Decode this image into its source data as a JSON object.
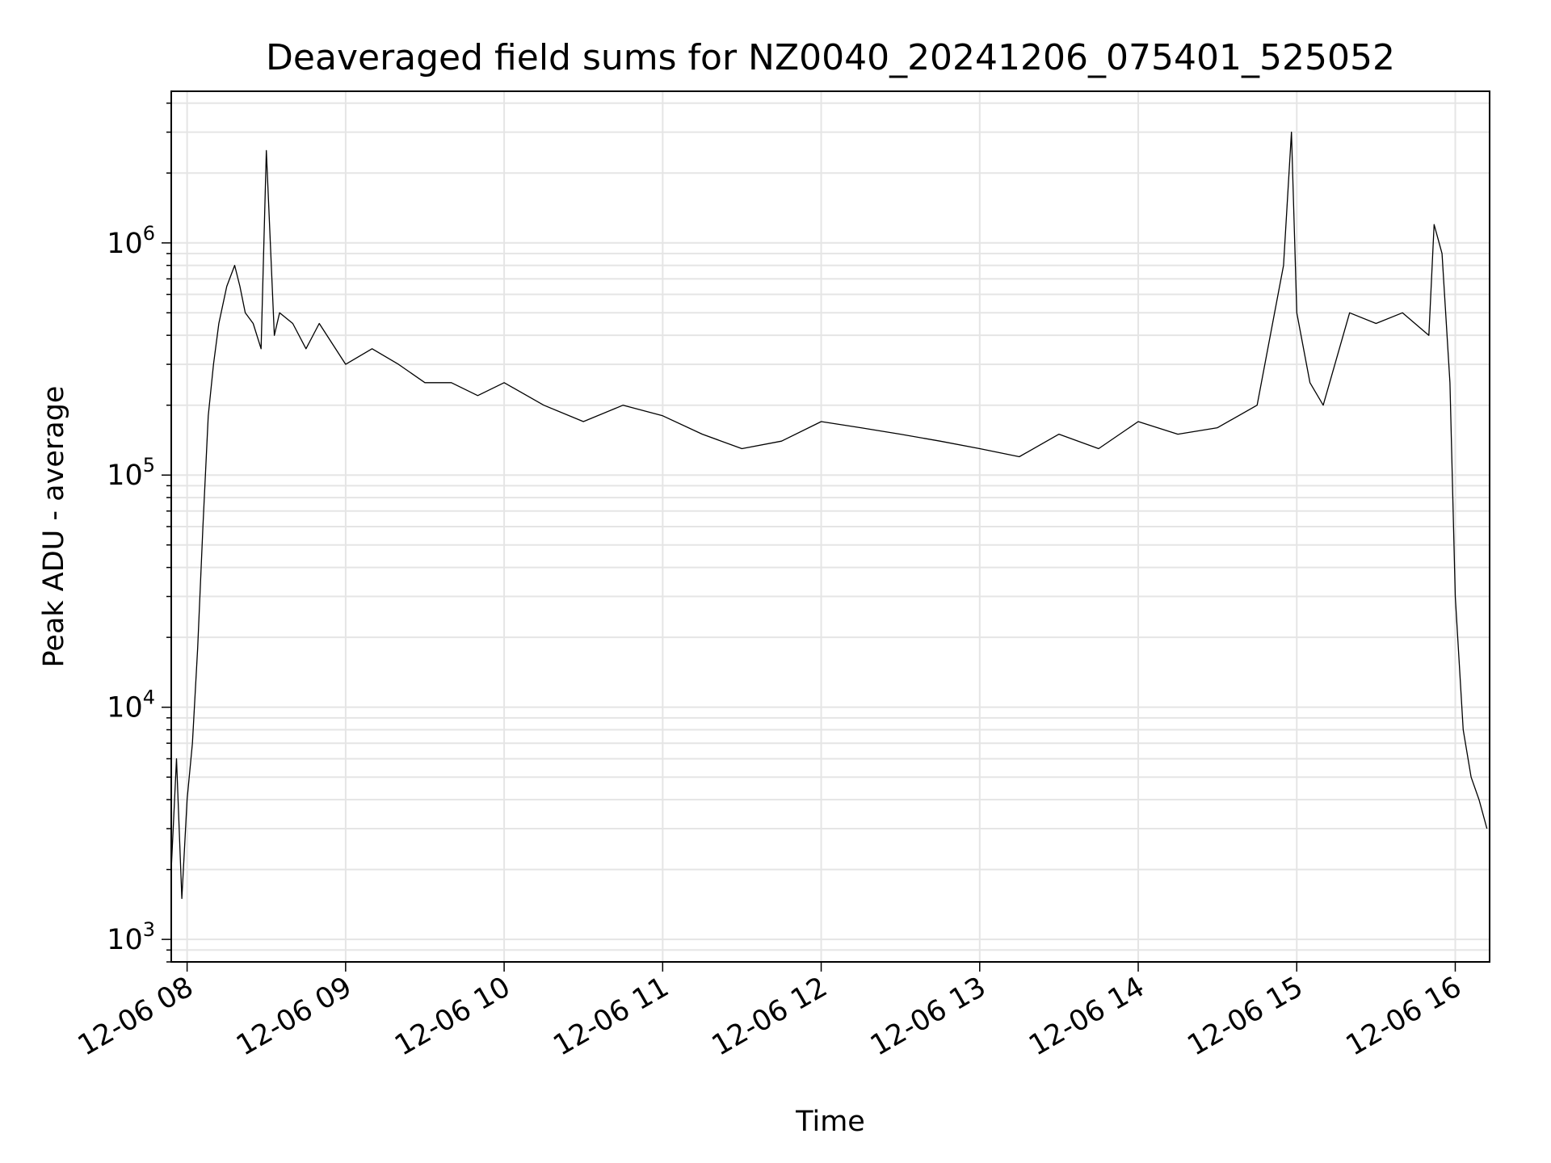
{
  "chart_data": {
    "type": "line",
    "title": "Deaveraged field sums for NZ0040_20241206_075401_525052",
    "xlabel": "Time",
    "ylabel": "Peak ADU - average",
    "yscale": "log",
    "ylim": [
      800,
      4500000
    ],
    "xlim": [
      "2024-12-06 07:54",
      "2024-12-06 16:13"
    ],
    "grid": true,
    "line_color": "#000000",
    "grid_color": "#e5e5e5",
    "x_ticks": [
      {
        "value": "2024-12-06 08:00",
        "label": "12-06 08"
      },
      {
        "value": "2024-12-06 09:00",
        "label": "12-06 09"
      },
      {
        "value": "2024-12-06 10:00",
        "label": "12-06 10"
      },
      {
        "value": "2024-12-06 11:00",
        "label": "12-06 11"
      },
      {
        "value": "2024-12-06 12:00",
        "label": "12-06 12"
      },
      {
        "value": "2024-12-06 13:00",
        "label": "12-06 13"
      },
      {
        "value": "2024-12-06 14:00",
        "label": "12-06 14"
      },
      {
        "value": "2024-12-06 15:00",
        "label": "12-06 15"
      },
      {
        "value": "2024-12-06 16:00",
        "label": "12-06 16"
      }
    ],
    "y_ticks": [
      {
        "value": 1000,
        "base": "10",
        "exp": "3"
      },
      {
        "value": 10000,
        "base": "10",
        "exp": "4"
      },
      {
        "value": 100000,
        "base": "10",
        "exp": "5"
      },
      {
        "value": 1000000,
        "base": "10",
        "exp": "6"
      }
    ],
    "series": [
      {
        "x": [
          "2024-12-06 07:54",
          "2024-12-06 07:56",
          "2024-12-06 07:58",
          "2024-12-06 08:00",
          "2024-12-06 08:02",
          "2024-12-06 08:04",
          "2024-12-06 08:06",
          "2024-12-06 08:08",
          "2024-12-06 08:10",
          "2024-12-06 08:12",
          "2024-12-06 08:15",
          "2024-12-06 08:18",
          "2024-12-06 08:20",
          "2024-12-06 08:22",
          "2024-12-06 08:25",
          "2024-12-06 08:28",
          "2024-12-06 08:30",
          "2024-12-06 08:33",
          "2024-12-06 08:35",
          "2024-12-06 08:40",
          "2024-12-06 08:45",
          "2024-12-06 08:50",
          "2024-12-06 09:00",
          "2024-12-06 09:10",
          "2024-12-06 09:20",
          "2024-12-06 09:30",
          "2024-12-06 09:40",
          "2024-12-06 09:50",
          "2024-12-06 10:00",
          "2024-12-06 10:15",
          "2024-12-06 10:30",
          "2024-12-06 10:45",
          "2024-12-06 11:00",
          "2024-12-06 11:15",
          "2024-12-06 11:30",
          "2024-12-06 11:45",
          "2024-12-06 12:00",
          "2024-12-06 12:15",
          "2024-12-06 12:30",
          "2024-12-06 12:45",
          "2024-12-06 13:00",
          "2024-12-06 13:15",
          "2024-12-06 13:30",
          "2024-12-06 13:45",
          "2024-12-06 14:00",
          "2024-12-06 14:15",
          "2024-12-06 14:30",
          "2024-12-06 14:45",
          "2024-12-06 14:55",
          "2024-12-06 14:58",
          "2024-12-06 15:00",
          "2024-12-06 15:05",
          "2024-12-06 15:10",
          "2024-12-06 15:20",
          "2024-12-06 15:30",
          "2024-12-06 15:40",
          "2024-12-06 15:50",
          "2024-12-06 15:52",
          "2024-12-06 15:55",
          "2024-12-06 15:58",
          "2024-12-06 16:00",
          "2024-12-06 16:03",
          "2024-12-06 16:06",
          "2024-12-06 16:09",
          "2024-12-06 16:12"
        ],
        "y": [
          2000,
          6000,
          1500,
          4000,
          7000,
          18000,
          60000,
          180000,
          300000,
          450000,
          650000,
          800000,
          650000,
          500000,
          450000,
          350000,
          2500000,
          400000,
          500000,
          450000,
          350000,
          450000,
          300000,
          350000,
          300000,
          250000,
          250000,
          220000,
          250000,
          200000,
          170000,
          200000,
          180000,
          150000,
          130000,
          140000,
          170000,
          160000,
          150000,
          140000,
          130000,
          120000,
          150000,
          130000,
          170000,
          150000,
          160000,
          200000,
          800000,
          3000000,
          500000,
          250000,
          200000,
          500000,
          450000,
          500000,
          400000,
          1200000,
          900000,
          250000,
          30000,
          8000,
          5000,
          4000,
          3000
        ]
      }
    ]
  }
}
